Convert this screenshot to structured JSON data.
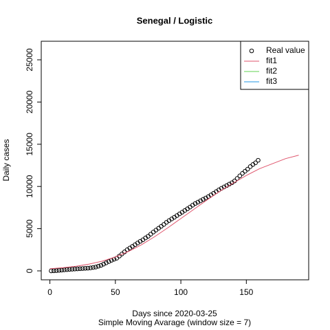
{
  "chart_data": {
    "type": "scatter",
    "title": "Senegal / Logistic",
    "x_label": "Days since 2020-03-25",
    "subtitle": "Simple Moving Avarage (window size = 7)",
    "y_label": "Daily cases",
    "xlim": [
      -6.6,
      197.6
    ],
    "ylim": [
      -1060,
      27200
    ],
    "xticks": [
      0,
      50,
      100,
      150
    ],
    "yticks": [
      0,
      5000,
      10000,
      15000,
      20000,
      25000
    ],
    "legend": "topright",
    "series": [
      {
        "name": "Real value",
        "color": "#000000",
        "marker": "circle",
        "x": [
          1,
          3,
          5,
          7,
          9,
          11,
          13,
          15,
          17,
          19,
          21,
          23,
          25,
          27,
          29,
          31,
          33,
          35,
          37,
          39,
          41,
          43,
          45,
          47,
          49,
          51,
          53,
          55,
          57,
          59,
          61,
          63,
          65,
          67,
          69,
          71,
          73,
          75,
          77,
          79,
          81,
          83,
          85,
          87,
          89,
          91,
          93,
          95,
          97,
          99,
          101,
          103,
          105,
          107,
          109,
          111,
          113,
          115,
          117,
          119,
          121,
          123,
          125,
          127,
          129,
          131,
          133,
          135,
          137,
          139,
          141,
          143,
          145,
          147,
          149,
          151,
          153,
          155,
          157,
          159
        ],
        "values": [
          0,
          10,
          30,
          60,
          90,
          120,
          150,
          180,
          200,
          220,
          240,
          260,
          280,
          300,
          320,
          350,
          400,
          450,
          550,
          650,
          800,
          950,
          1100,
          1250,
          1380,
          1500,
          1750,
          2000,
          2250,
          2500,
          2700,
          2900,
          3100,
          3300,
          3500,
          3680,
          3900,
          4100,
          4350,
          4600,
          4830,
          5050,
          5280,
          5500,
          5750,
          5960,
          6150,
          6350,
          6550,
          6750,
          6950,
          7150,
          7350,
          7560,
          7780,
          7980,
          8140,
          8300,
          8470,
          8630,
          8800,
          8990,
          9190,
          9390,
          9590,
          9780,
          9940,
          10100,
          10280,
          10440,
          10650,
          10950,
          11250,
          11550,
          11800,
          12050,
          12350,
          12600,
          12800,
          13100
        ]
      },
      {
        "name": "fit1",
        "color": "#DF536B",
        "marker": "line",
        "x": [
          0,
          10,
          20,
          30,
          40,
          50,
          60,
          70,
          80,
          90,
          100,
          110,
          120,
          130,
          140,
          150,
          160,
          170,
          180,
          190
        ],
        "values": [
          250,
          380,
          550,
          800,
          1150,
          1650,
          2300,
          3100,
          4050,
          5100,
          6200,
          7300,
          8400,
          9450,
          10400,
          11300,
          12100,
          12700,
          13300,
          13700
        ]
      },
      {
        "name": "fit2",
        "color": "#61D04F",
        "marker": "line"
      },
      {
        "name": "fit3",
        "color": "#2297E6",
        "marker": "line"
      }
    ]
  }
}
